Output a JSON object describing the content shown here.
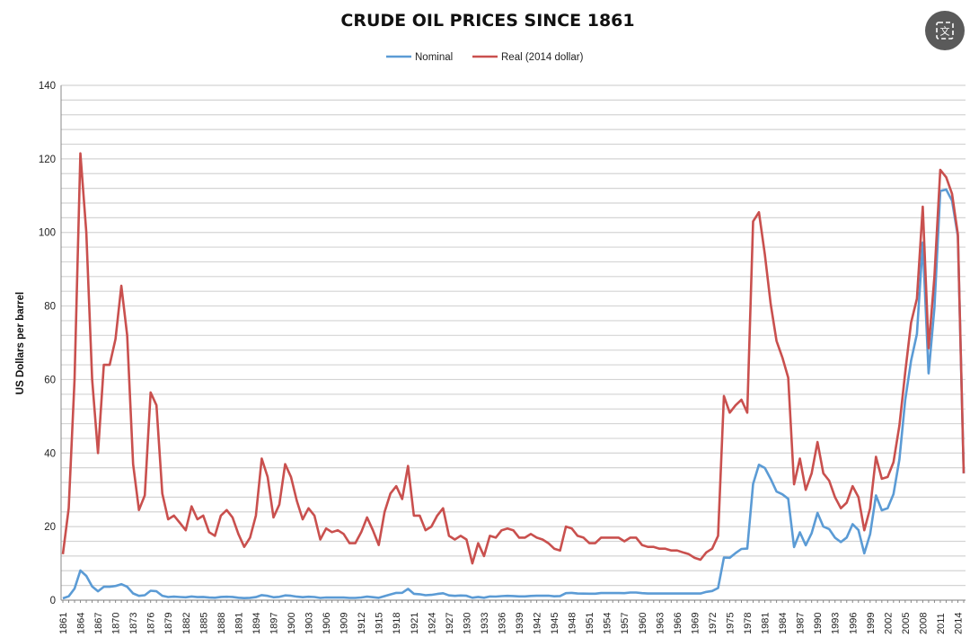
{
  "chart_data": {
    "type": "line",
    "title": "CRUDE OIL PRICES SINCE 1861",
    "xlabel": "",
    "ylabel": "US Dollars per barrel",
    "ylim": [
      0,
      140
    ],
    "y_ticks": [
      0,
      20,
      40,
      60,
      80,
      100,
      120,
      140
    ],
    "grid": true,
    "legend_position": "top",
    "x_start": 1861,
    "x_end": 2015,
    "x_tick_step": 3,
    "series": [
      {
        "name": "Nominal",
        "color": "#5b9bd5",
        "values": [
          0.49,
          1.05,
          3.15,
          8.06,
          6.59,
          3.74,
          2.41,
          3.63,
          3.64,
          3.86,
          4.34,
          3.64,
          1.83,
          1.17,
          1.35,
          2.56,
          2.42,
          1.19,
          0.86,
          0.95,
          0.86,
          0.78,
          1.0,
          0.84,
          0.88,
          0.71,
          0.67,
          0.88,
          0.94,
          0.87,
          0.67,
          0.56,
          0.64,
          0.84,
          1.36,
          1.18,
          0.79,
          0.91,
          1.29,
          1.19,
          0.96,
          0.8,
          0.94,
          0.86,
          0.62,
          0.73,
          0.72,
          0.72,
          0.7,
          0.61,
          0.61,
          0.74,
          0.95,
          0.81,
          0.64,
          1.1,
          1.56,
          1.98,
          2.01,
          3.07,
          1.73,
          1.61,
          1.34,
          1.43,
          1.68,
          1.88,
          1.3,
          1.17,
          1.27,
          1.19,
          0.65,
          0.87,
          0.67,
          1.0,
          0.97,
          1.09,
          1.18,
          1.13,
          1.02,
          1.02,
          1.14,
          1.19,
          1.2,
          1.21,
          1.05,
          1.12,
          1.9,
          1.99,
          1.8,
          1.78,
          1.77,
          1.77,
          1.93,
          1.93,
          1.93,
          1.93,
          1.9,
          2.08,
          2.08,
          1.9,
          1.8,
          1.8,
          1.8,
          1.8,
          1.8,
          1.8,
          1.8,
          1.8,
          1.8,
          1.8,
          2.24,
          2.48,
          3.29,
          11.58,
          11.53,
          12.8,
          13.92,
          14.02,
          31.61,
          36.83,
          35.93,
          32.97,
          29.55,
          28.78,
          27.56,
          14.43,
          18.44,
          14.92,
          18.23,
          23.73,
          20.0,
          19.32,
          16.97,
          15.82,
          17.02,
          20.67,
          19.09,
          12.72,
          17.97,
          28.5,
          24.44,
          25.02,
          28.83,
          38.27,
          54.52,
          65.14,
          72.39,
          97.26,
          61.67,
          79.5,
          111.26,
          111.67,
          108.66,
          98.95,
          34.5
        ]
      },
      {
        "name": "Real (2014 dollar)",
        "color": "#c9504e",
        "values": [
          12.5,
          25,
          60,
          121.5,
          100,
          60,
          40,
          64,
          64,
          71,
          85.5,
          72,
          37,
          24.5,
          28.5,
          56.5,
          53,
          29,
          22,
          23,
          21,
          19,
          25.5,
          22,
          23,
          18.5,
          17.5,
          23,
          24.5,
          22.5,
          18,
          14.5,
          17,
          23,
          38.5,
          33.5,
          22.5,
          26,
          37,
          33.5,
          27,
          22,
          25,
          23,
          16.5,
          19.5,
          18.5,
          19,
          18,
          15.5,
          15.5,
          18.5,
          22.5,
          19,
          15,
          24,
          29,
          31,
          27.5,
          36.5,
          23,
          23,
          19,
          20,
          23,
          25,
          17.5,
          16.5,
          17.5,
          16.5,
          10,
          15.5,
          12,
          17.5,
          17,
          19,
          19.5,
          19,
          17,
          17,
          18,
          17,
          16.5,
          15.5,
          14,
          13.5,
          20,
          19.5,
          17.5,
          17,
          15.5,
          15.5,
          17,
          17,
          17,
          17,
          16,
          17,
          17,
          15,
          14.5,
          14.5,
          14,
          14,
          13.5,
          13.5,
          13,
          12.5,
          11.5,
          11,
          13,
          14,
          17.5,
          55.5,
          51,
          53,
          54.5,
          51,
          103,
          105.5,
          94,
          80.5,
          70.5,
          66,
          60.5,
          31.5,
          38.5,
          30,
          34.5,
          43,
          34.5,
          32.5,
          28,
          25,
          26.5,
          31,
          28,
          19,
          25,
          39,
          33,
          33.5,
          37.5,
          47.5,
          62,
          75.5,
          82,
          107,
          68.5,
          88,
          117,
          115,
          110.5,
          99.5,
          34.5
        ]
      }
    ]
  },
  "ui": {
    "translate_button_label": "文",
    "translate_icon": "translate-icon"
  }
}
